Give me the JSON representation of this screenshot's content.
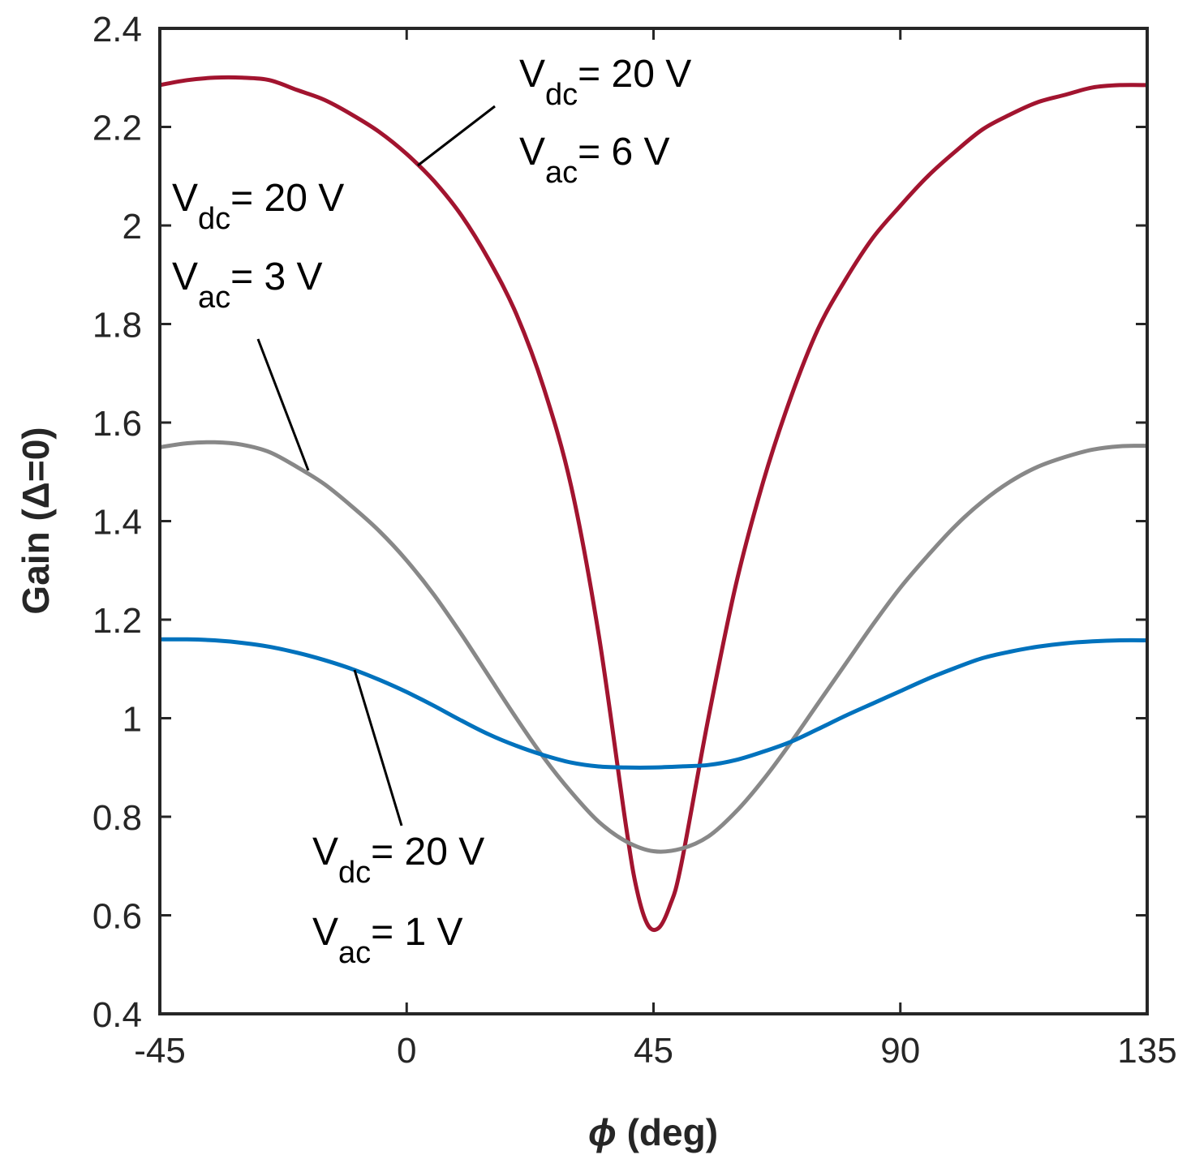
{
  "chart_data": {
    "type": "line",
    "title": "",
    "xlabel": "ϕ (deg)",
    "xlabel_symbol": "ϕ",
    "xlabel_rest": " (deg)",
    "ylabel": "Gain (Δ=0)",
    "xlim": [
      -45,
      135
    ],
    "ylim": [
      0.4,
      2.4
    ],
    "xticks": [
      -45,
      0,
      45,
      90,
      135
    ],
    "xtick_labels": [
      "-45",
      "0",
      "45",
      "90",
      "135"
    ],
    "yticks": [
      0.4,
      0.6,
      0.8,
      1.0,
      1.2,
      1.4,
      1.6,
      1.8,
      2.0,
      2.2,
      2.4
    ],
    "ytick_labels": [
      "0.4",
      "0.6",
      "0.8",
      "1",
      "1.2",
      "1.4",
      "1.6",
      "1.8",
      "2",
      "2.2",
      "2.4"
    ],
    "grid": false,
    "box": true,
    "series": [
      {
        "name": "Vac = 6 V",
        "color": "#a2142f",
        "x": [
          -45,
          -40,
          -35,
          -30,
          -25,
          -20,
          -15,
          -10,
          -5,
          0,
          5,
          10,
          15,
          20,
          25,
          30,
          35,
          40,
          42,
          44,
          46,
          48,
          50,
          55,
          60,
          65,
          70,
          75,
          80,
          85,
          90,
          95,
          100,
          105,
          110,
          115,
          120,
          125,
          130,
          135
        ],
        "y": [
          2.285,
          2.295,
          2.3,
          2.3,
          2.295,
          2.275,
          2.255,
          2.225,
          2.19,
          2.145,
          2.09,
          2.02,
          1.93,
          1.82,
          1.67,
          1.47,
          1.17,
          0.78,
          0.65,
          0.58,
          0.575,
          0.62,
          0.7,
          1.0,
          1.27,
          1.48,
          1.65,
          1.79,
          1.89,
          1.975,
          2.04,
          2.1,
          2.15,
          2.195,
          2.225,
          2.25,
          2.265,
          2.28,
          2.285,
          2.285
        ]
      },
      {
        "name": "Vac = 3 V",
        "color": "#888888",
        "x": [
          -45,
          -40,
          -35,
          -30,
          -25,
          -20,
          -15,
          -10,
          -5,
          0,
          5,
          10,
          15,
          20,
          25,
          30,
          35,
          40,
          45,
          50,
          55,
          60,
          65,
          70,
          75,
          80,
          85,
          90,
          95,
          100,
          105,
          110,
          115,
          120,
          125,
          130,
          135
        ],
        "y": [
          1.55,
          1.558,
          1.56,
          1.555,
          1.54,
          1.51,
          1.475,
          1.43,
          1.38,
          1.32,
          1.25,
          1.17,
          1.085,
          1.0,
          0.92,
          0.85,
          0.79,
          0.75,
          0.73,
          0.735,
          0.76,
          0.81,
          0.875,
          0.95,
          1.03,
          1.11,
          1.19,
          1.265,
          1.33,
          1.39,
          1.44,
          1.48,
          1.51,
          1.53,
          1.545,
          1.552,
          1.553
        ]
      },
      {
        "name": "Vac = 1 V",
        "color": "#0072bd",
        "x": [
          -45,
          -40,
          -35,
          -30,
          -25,
          -20,
          -15,
          -10,
          -5,
          0,
          5,
          10,
          15,
          20,
          25,
          30,
          35,
          40,
          45,
          50,
          55,
          60,
          65,
          70,
          75,
          80,
          85,
          90,
          95,
          100,
          105,
          110,
          115,
          120,
          125,
          130,
          135
        ],
        "y": [
          1.16,
          1.16,
          1.158,
          1.153,
          1.145,
          1.133,
          1.118,
          1.1,
          1.078,
          1.053,
          1.025,
          0.995,
          0.967,
          0.944,
          0.925,
          0.91,
          0.902,
          0.9,
          0.9,
          0.902,
          0.905,
          0.915,
          0.932,
          0.952,
          0.978,
          1.005,
          1.03,
          1.055,
          1.08,
          1.102,
          1.122,
          1.135,
          1.145,
          1.152,
          1.156,
          1.158,
          1.158
        ]
      }
    ],
    "annotations": [
      {
        "id": "red",
        "vdc_main": "V",
        "vdc_sub": "dc",
        "vdc_rest": "= 20 V",
        "vac_main": "V",
        "vac_sub": "ac",
        "vac_rest": "= 6 V"
      },
      {
        "id": "gray",
        "vdc_main": "V",
        "vdc_sub": "dc",
        "vdc_rest": "= 20 V",
        "vac_main": "V",
        "vac_sub": "ac",
        "vac_rest": "= 3 V"
      },
      {
        "id": "blue",
        "vdc_main": "V",
        "vdc_sub": "dc",
        "vdc_rest": "= 20 V",
        "vac_main": "V",
        "vac_sub": "ac",
        "vac_rest": "= 1 V"
      }
    ]
  }
}
